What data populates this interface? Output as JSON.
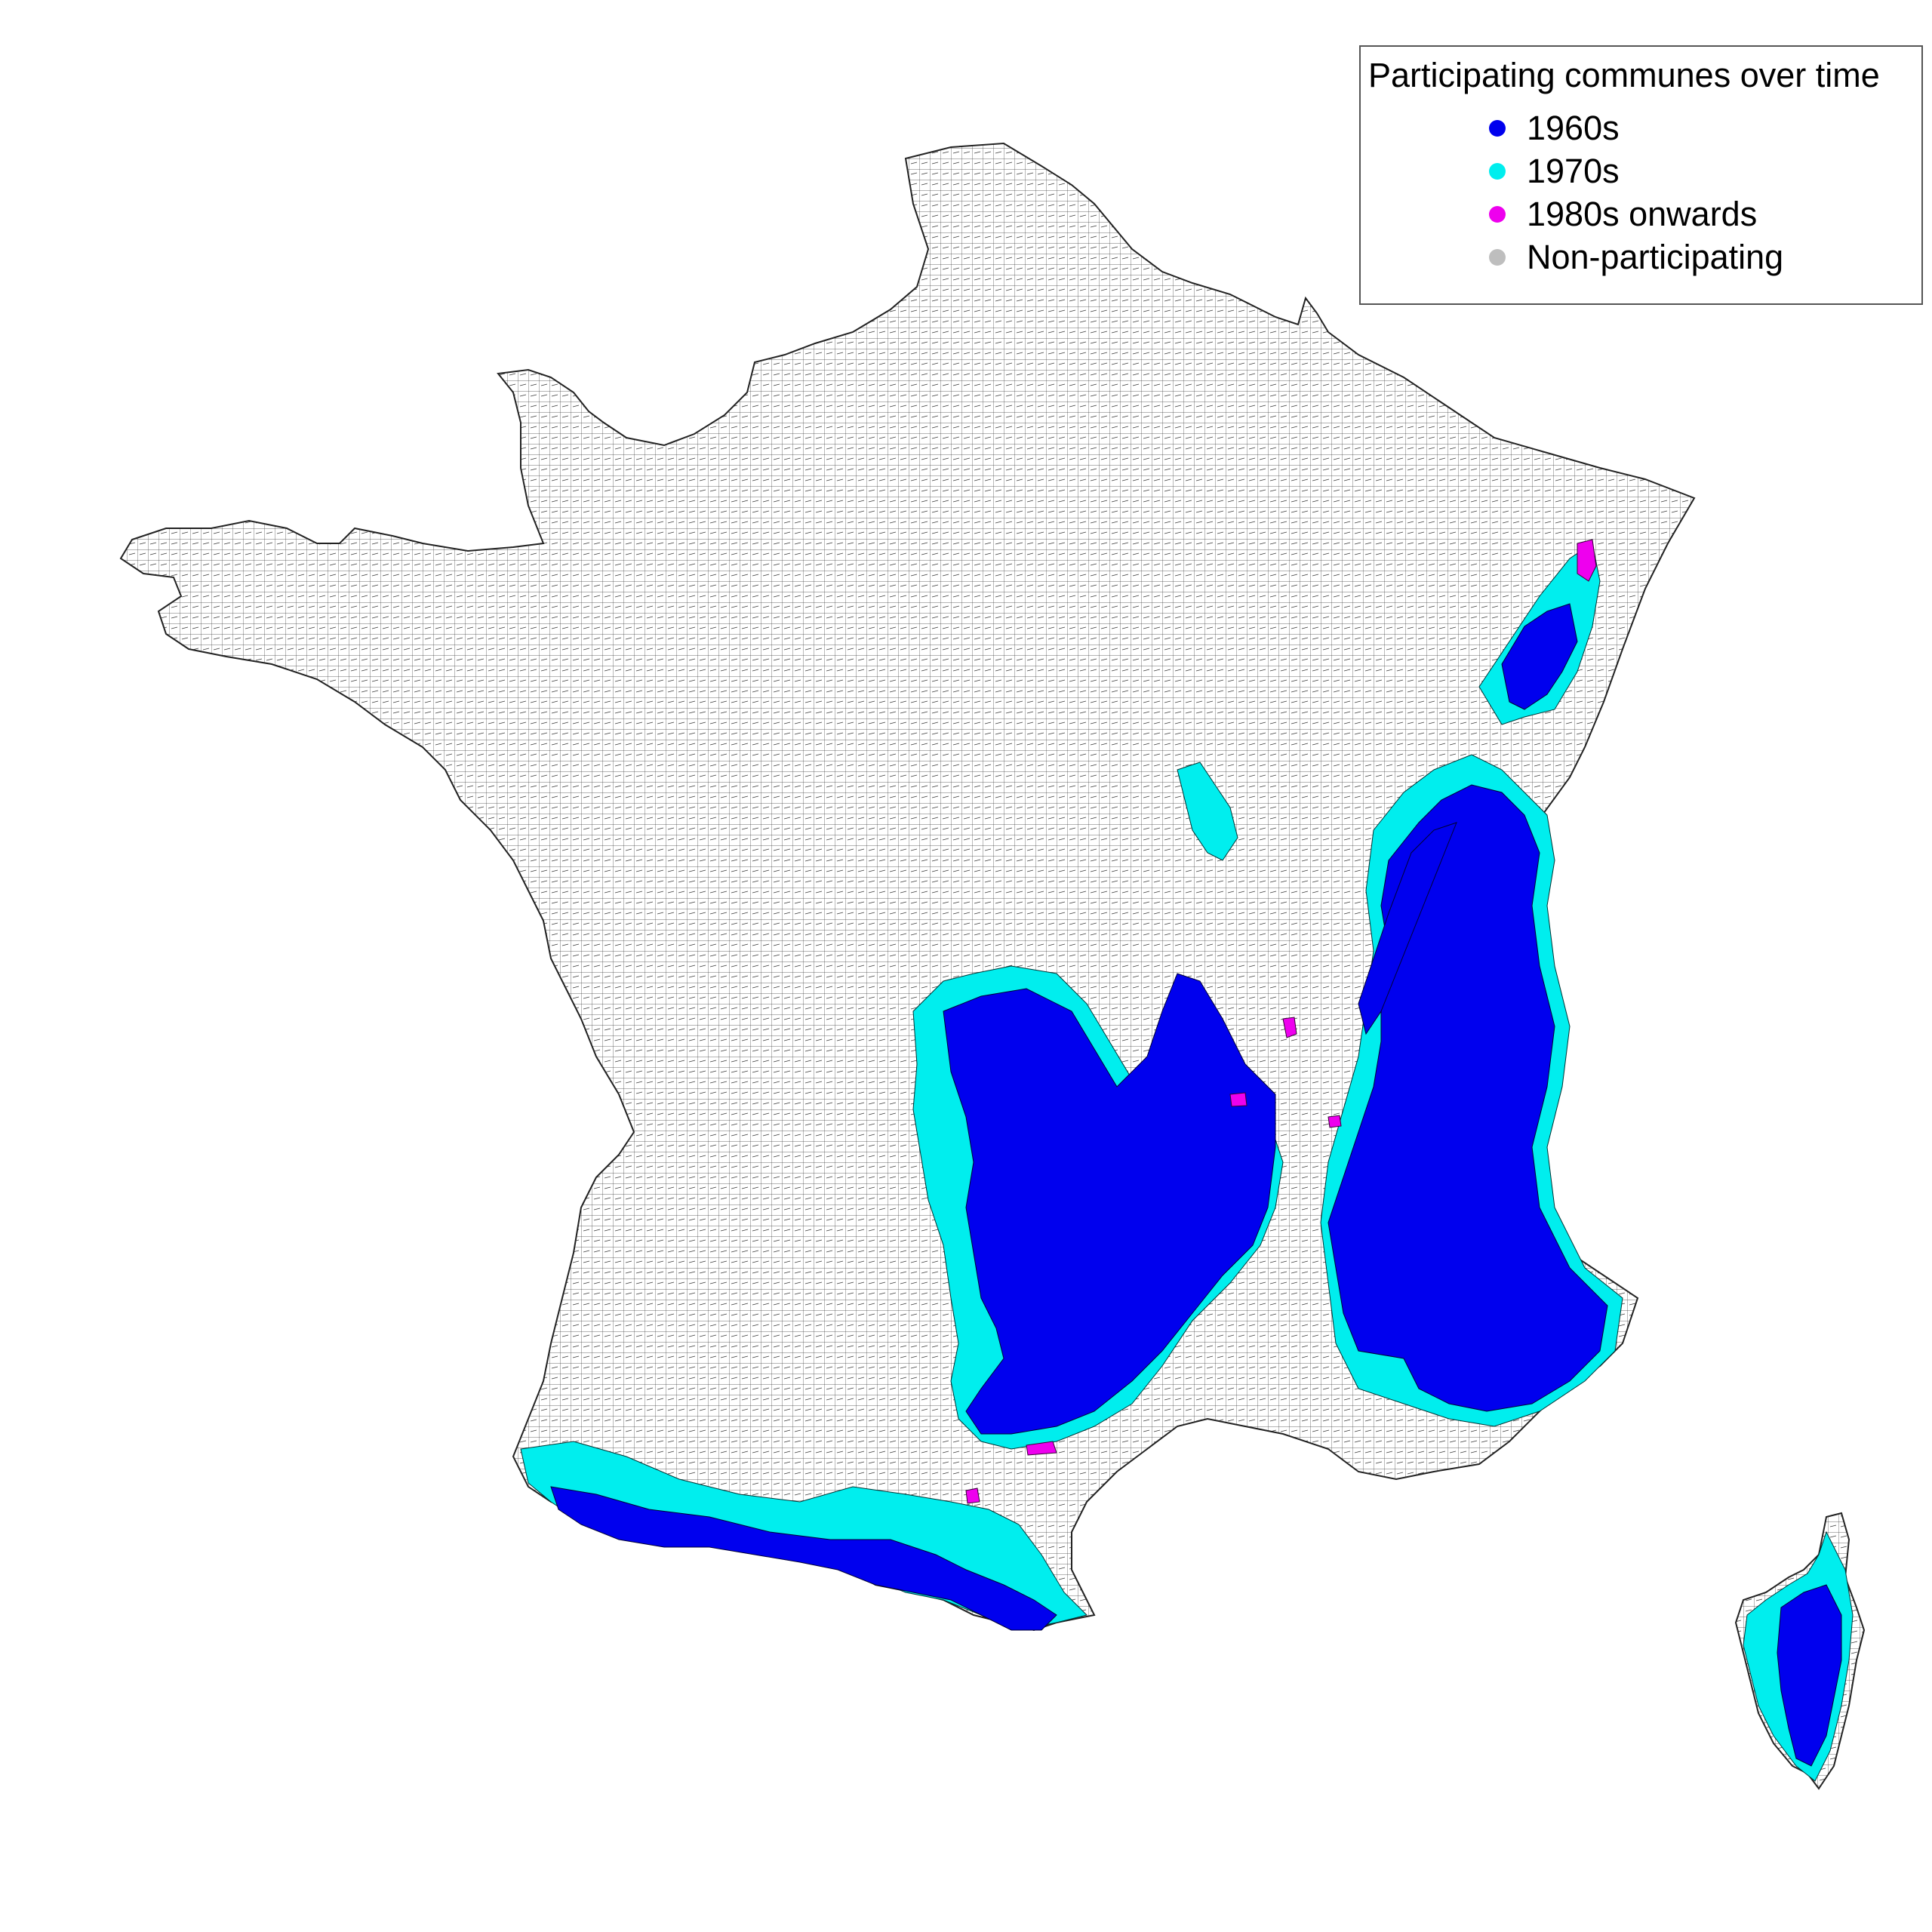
{
  "legend": {
    "title": "Participating communes over time",
    "items": [
      {
        "label": "1960s",
        "color": "#0000ee"
      },
      {
        "label": "1970s",
        "color": "#00eeee"
      },
      {
        "label": "1980s onwards",
        "color": "#ee00ee"
      },
      {
        "label": "Non-participating",
        "color": "#bebebe"
      }
    ]
  },
  "map": {
    "land_color": "#bebebe",
    "border_color": "#333333"
  }
}
